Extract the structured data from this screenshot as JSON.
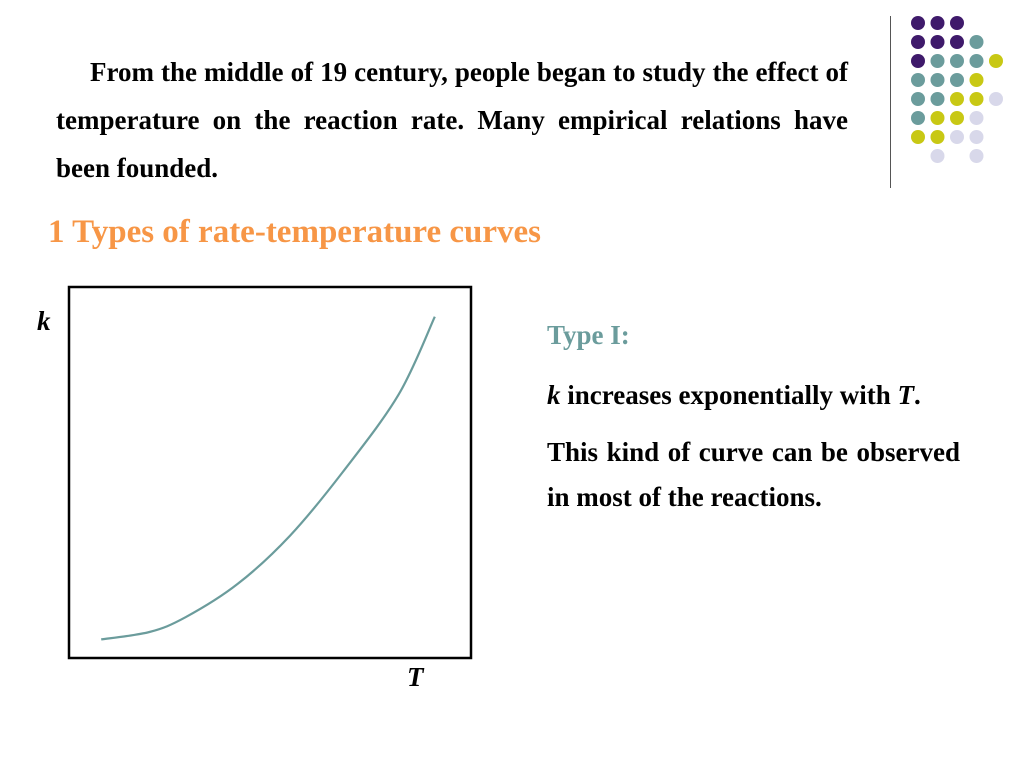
{
  "intro": "From the middle of 19 century, people began to study the effect of temperature on the reaction rate. Many empirical relations have been founded.",
  "heading": "1 Types of rate-temperature curves",
  "colors": {
    "heading": "#f79646",
    "type_title": "#6b9c9c",
    "curve": "#6b9c9c",
    "dot_purple": "#3f1a6b",
    "dot_teal": "#6b9c9c",
    "dot_yellow": "#c8c814",
    "dot_lavender": "#d8d8ea"
  },
  "decoration": {
    "dot_rows": [
      [
        "purple",
        "purple",
        "purple",
        "",
        ""
      ],
      [
        "purple",
        "purple",
        "purple",
        "teal",
        ""
      ],
      [
        "purple",
        "teal",
        "teal",
        "teal",
        "yellow"
      ],
      [
        "teal",
        "teal",
        "teal",
        "yellow",
        ""
      ],
      [
        "teal",
        "teal",
        "yellow",
        "yellow",
        "lavender"
      ],
      [
        "teal",
        "yellow",
        "yellow",
        "lavender",
        ""
      ],
      [
        "yellow",
        "yellow",
        "lavender",
        "lavender",
        ""
      ],
      [
        "",
        "lavender",
        "",
        "lavender",
        ""
      ]
    ]
  },
  "chart_data": {
    "type": "line",
    "title": "",
    "xlabel": "T",
    "ylabel": "k",
    "grid": false,
    "x_ticks": false,
    "y_ticks": false,
    "xlim": [
      0,
      100
    ],
    "ylim": [
      0,
      100
    ],
    "series": [
      {
        "x": [
          8,
          20,
          29,
          42,
          55,
          68,
          82,
          91
        ],
        "y": [
          5,
          7,
          11,
          20,
          33,
          50,
          71,
          92
        ]
      }
    ]
  },
  "description": {
    "type_label": "Type I:",
    "statement": {
      "var_k": "k",
      "text_a": " increases exponentially with ",
      "var_t": "T",
      "text_b": "."
    },
    "observation": "This kind of curve can be observed in most of the reactions."
  }
}
